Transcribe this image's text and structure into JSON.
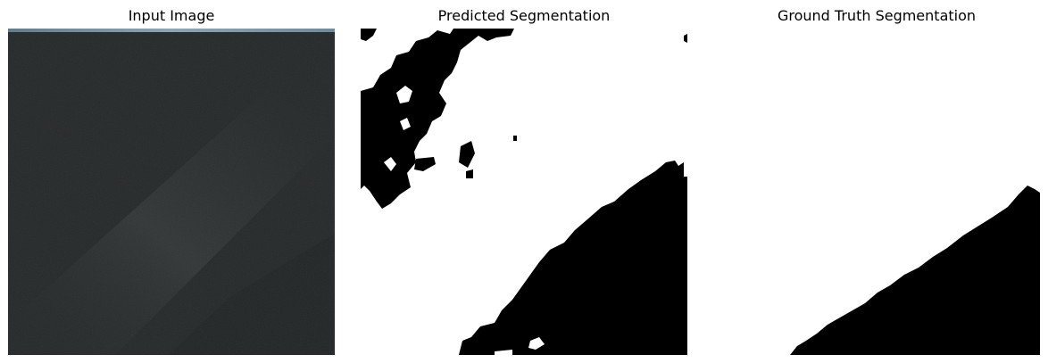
{
  "figure": {
    "panels": [
      {
        "title": "Input Image"
      },
      {
        "title": "Predicted Segmentation"
      },
      {
        "title": "Ground Truth Segmentation"
      }
    ]
  },
  "colors": {
    "input_base": "#26292a",
    "input_haze": "#34383a",
    "input_top_strip": "#7a98a8",
    "mask_foreground": "#ffffff",
    "mask_background": "#000000"
  }
}
